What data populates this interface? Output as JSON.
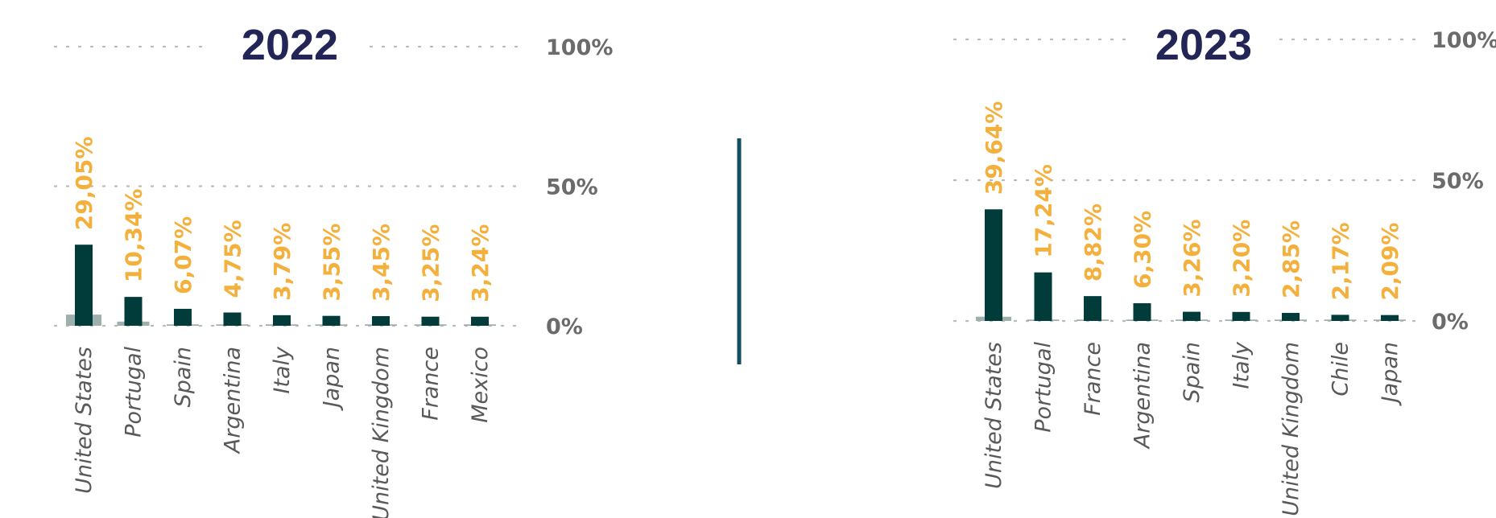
{
  "chart_data": [
    {
      "type": "bar",
      "title": "2022",
      "categories": [
        "United States",
        "Portugal",
        "Spain",
        "Argentina",
        "Italy",
        "Japan",
        "United Kingdom",
        "France",
        "Mexico"
      ],
      "values": [
        29.05,
        10.34,
        6.07,
        4.75,
        3.79,
        3.55,
        3.45,
        3.25,
        3.24
      ],
      "data_labels": [
        "29,05%",
        "10,34%",
        "6,07%",
        "4,75%",
        "3,79%",
        "3,55%",
        "3,45%",
        "3,25%",
        "3,24%"
      ],
      "background_values": [
        4,
        1.5,
        0.5,
        0.5,
        0.5,
        0.5,
        0.5,
        0.5,
        0.5
      ],
      "ylim": [
        0,
        100
      ],
      "y_ticks": [
        0,
        50,
        100
      ],
      "y_tick_labels": [
        "0%",
        "50%",
        "100%"
      ],
      "grid": true,
      "colors": {
        "bar": "#023c3a",
        "background_bar": "#9db0ad",
        "label": "#f4b03c"
      }
    },
    {
      "type": "bar",
      "title": "2023",
      "categories": [
        "United States",
        "Portugal",
        "France",
        "Argentina",
        "Spain",
        "Italy",
        "United Kingdom",
        "Chile",
        "Japan"
      ],
      "values": [
        39.64,
        17.24,
        8.82,
        6.3,
        3.26,
        3.2,
        2.85,
        2.17,
        2.09
      ],
      "data_labels": [
        "39,64%",
        "17,24%",
        "8,82%",
        "6,30%",
        "3,26%",
        "3,20%",
        "2,85%",
        "2,17%",
        "2,09%"
      ],
      "background_values": [
        1.5,
        0.5,
        0.5,
        0.5,
        0.5,
        0.5,
        0.5,
        0.5,
        0.5
      ],
      "ylim": [
        0,
        100
      ],
      "y_ticks": [
        0,
        50,
        100
      ],
      "y_tick_labels": [
        "0%",
        "50%",
        "100%"
      ],
      "grid": true,
      "colors": {
        "bar": "#023c3a",
        "background_bar": "#9db0ad",
        "label": "#f4b03c"
      }
    }
  ],
  "divider_color": "#154e60"
}
